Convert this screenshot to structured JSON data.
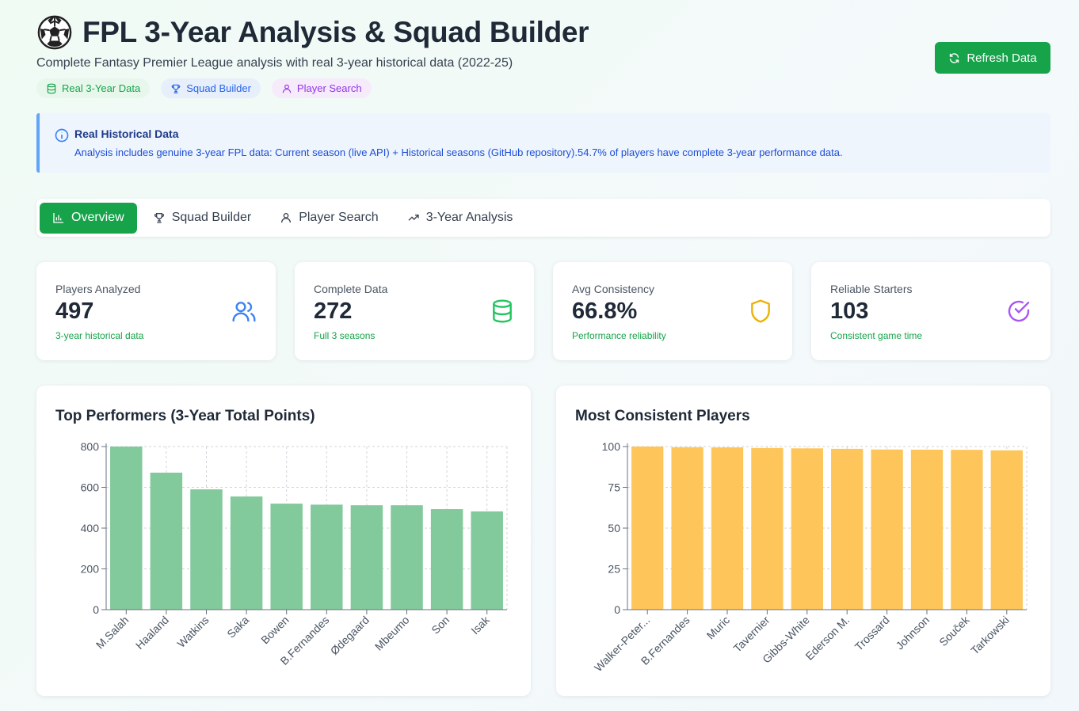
{
  "header": {
    "title": "FPL 3-Year Analysis & Squad Builder",
    "subtitle": "Complete Fantasy Premier League analysis with real 3-year historical data (2022-25)",
    "icon": "soccer-ball-icon",
    "chips": [
      {
        "label": "Real 3-Year Data",
        "icon": "database-icon"
      },
      {
        "label": "Squad Builder",
        "icon": "trophy-icon"
      },
      {
        "label": "Player Search",
        "icon": "user-icon"
      }
    ],
    "refresh_label": "Refresh Data"
  },
  "info": {
    "title": "Real Historical Data",
    "text": "Analysis includes genuine 3-year FPL data: Current season (live API) + Historical seasons (GitHub repository).54.7% of players have complete 3-year performance data."
  },
  "tabs": [
    {
      "label": "Overview",
      "icon": "bar-chart-icon",
      "active": true
    },
    {
      "label": "Squad Builder",
      "icon": "trophy-icon",
      "active": false
    },
    {
      "label": "Player Search",
      "icon": "user-icon",
      "active": false
    },
    {
      "label": "3-Year Analysis",
      "icon": "trending-up-icon",
      "active": false
    }
  ],
  "stats": [
    {
      "label": "Players Analyzed",
      "value": "497",
      "sub": "3-year historical data",
      "icon": "users-icon",
      "color": "#3b82f6"
    },
    {
      "label": "Complete Data",
      "value": "272",
      "sub": "Full 3 seasons",
      "icon": "database-icon",
      "color": "#22c55e"
    },
    {
      "label": "Avg Consistency",
      "value": "66.8%",
      "sub": "Performance reliability",
      "icon": "shield-icon",
      "color": "#eab308"
    },
    {
      "label": "Reliable Starters",
      "value": "103",
      "sub": "Consistent game time",
      "icon": "check-circle-icon",
      "color": "#a855f7"
    }
  ],
  "chart_data": [
    {
      "type": "bar",
      "title": "Top Performers (3-Year Total Points)",
      "categories": [
        "M.Salah",
        "Haaland",
        "Watkins",
        "Saka",
        "Bowen",
        "B.Fernandes",
        "Ødegaard",
        "Mbeumo",
        "Son",
        "Isak"
      ],
      "values": [
        800,
        672,
        590,
        555,
        520,
        515,
        512,
        512,
        493,
        482
      ],
      "ylim": [
        0,
        800
      ],
      "yticks": [
        0,
        200,
        400,
        600,
        800
      ],
      "grid": true,
      "color": "#82c99b"
    },
    {
      "type": "bar",
      "title": "Most Consistent Players",
      "categories": [
        "Walker-Peter...",
        "B.Fernandes",
        "Muric",
        "Tavernier",
        "Gibbs-White",
        "Ederson M.",
        "Trossard",
        "Johnson",
        "Souček",
        "Tarkowski"
      ],
      "values": [
        100,
        99.6,
        99.5,
        99.1,
        98.9,
        98.6,
        98.2,
        98.1,
        98.0,
        97.7
      ],
      "ylim": [
        0,
        100
      ],
      "yticks": [
        0,
        25,
        50,
        75,
        100
      ],
      "grid": true,
      "color": "#fec65a"
    }
  ]
}
